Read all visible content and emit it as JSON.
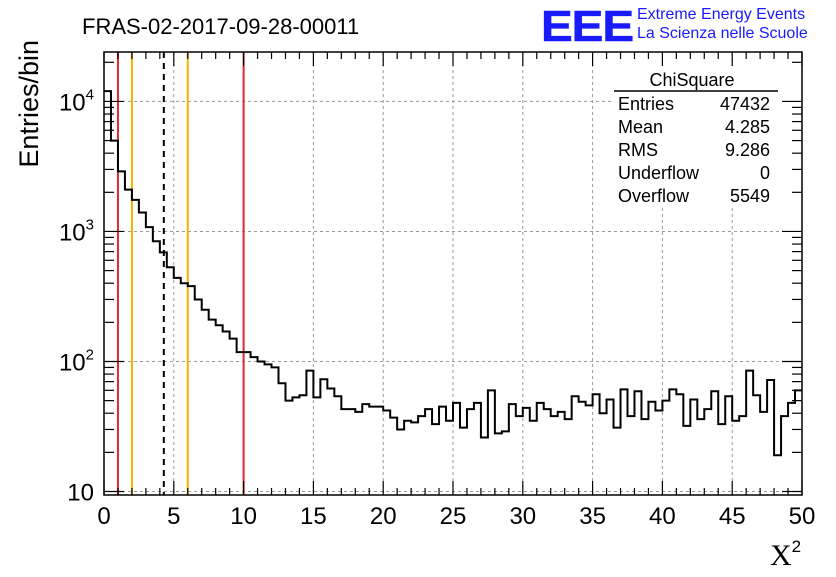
{
  "chart_data": {
    "type": "histogram",
    "title": "FRAS-02-2017-09-28-00011",
    "xlabel": "X",
    "xlabel_superscript": "2",
    "ylabel": "Entries/bin",
    "xlim": [
      0,
      50
    ],
    "ylim": [
      9.4,
      24000
    ],
    "yscale": "log",
    "grid": true,
    "bin_width": 0.5,
    "x_ticks": [
      "0",
      "5",
      "10",
      "15",
      "20",
      "25",
      "30",
      "35",
      "40",
      "45",
      "50"
    ],
    "y_ticks": [
      {
        "base": "10",
        "exp": "4",
        "value": 10000
      },
      {
        "base": "10",
        "exp": "3",
        "value": 1000
      },
      {
        "base": "10",
        "exp": "2",
        "value": 100
      },
      {
        "base": "10",
        "exp": "",
        "value": 10
      }
    ],
    "values": [
      12000,
      5000,
      2900,
      2100,
      1750,
      1400,
      1080,
      840,
      690,
      530,
      440,
      400,
      380,
      300,
      250,
      210,
      190,
      170,
      150,
      118,
      118,
      108,
      100,
      95,
      90,
      68,
      50,
      53,
      55,
      85,
      53,
      73,
      62,
      54,
      43,
      43,
      41,
      47,
      45,
      45,
      42,
      37,
      30,
      35,
      34,
      38,
      43,
      33,
      45,
      35,
      48,
      31,
      43,
      48,
      26,
      60,
      28,
      29,
      47,
      38,
      44,
      35,
      48,
      43,
      38,
      41,
      36,
      54,
      49,
      46,
      56,
      40,
      51,
      31,
      61,
      38,
      59,
      36,
      49,
      42,
      50,
      61,
      56,
      32,
      51,
      36,
      43,
      59,
      33,
      54,
      35,
      38,
      85,
      55,
      41,
      72,
      19,
      38,
      48,
      60
    ],
    "vertical_lines": [
      {
        "x": 1,
        "color": "#e22828",
        "style": "solid"
      },
      {
        "x": 2,
        "color": "#f2b200",
        "style": "solid"
      },
      {
        "x": 4.285,
        "color": "#000000",
        "style": "dashed"
      },
      {
        "x": 6,
        "color": "#f2b200",
        "style": "solid"
      },
      {
        "x": 10,
        "color": "#e22828",
        "style": "solid"
      }
    ],
    "stats_box": {
      "title": "ChiSquare",
      "rows": [
        {
          "label": "Entries",
          "value": "47432"
        },
        {
          "label": "Mean",
          "value": "4.285"
        },
        {
          "label": "RMS",
          "value": "9.286"
        },
        {
          "label": "Underflow",
          "value": "0"
        },
        {
          "label": "Overflow",
          "value": "5549"
        }
      ]
    },
    "logo": {
      "mark": "EEE",
      "line1": "Extreme Energy Events",
      "line2": "La Scienza nelle Scuole",
      "color": "#1a1aff"
    },
    "colors": {
      "histogram": "#000000",
      "grid": "#9a9a9a",
      "frame": "#000000"
    }
  }
}
